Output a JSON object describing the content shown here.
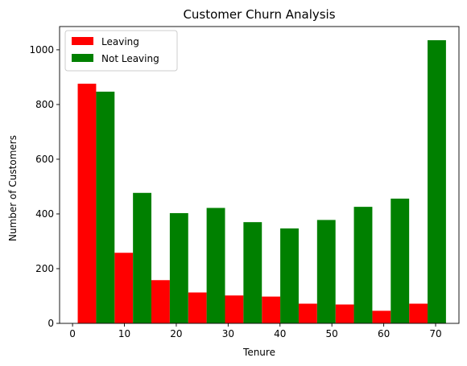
{
  "chart_data": {
    "type": "bar",
    "title": "Customer Churn Analysis",
    "xlabel": "Tenure",
    "ylabel": "Number of Customers",
    "x_ticks": [
      0,
      10,
      20,
      30,
      40,
      50,
      60,
      70
    ],
    "y_ticks": [
      0,
      200,
      400,
      600,
      800,
      1000
    ],
    "xlim": [
      -2.5,
      74.5
    ],
    "ylim": [
      0,
      1085
    ],
    "bins": [
      [
        1,
        8.1
      ],
      [
        8.1,
        15.2
      ],
      [
        15.2,
        22.3
      ],
      [
        22.3,
        29.4
      ],
      [
        29.4,
        36.5
      ],
      [
        36.5,
        43.6
      ],
      [
        43.6,
        50.7
      ],
      [
        50.7,
        57.8
      ],
      [
        57.8,
        64.9
      ],
      [
        64.9,
        72
      ]
    ],
    "series": [
      {
        "name": "Leaving",
        "color": "#ff0000",
        "values": [
          876,
          258,
          158,
          113,
          102,
          98,
          72,
          69,
          46,
          72
        ]
      },
      {
        "name": "Not Leaving",
        "color": "#008000",
        "values": [
          847,
          477,
          403,
          422,
          370,
          347,
          378,
          426,
          456,
          1035
        ]
      }
    ],
    "legend_position": "top-left",
    "grid": false
  }
}
